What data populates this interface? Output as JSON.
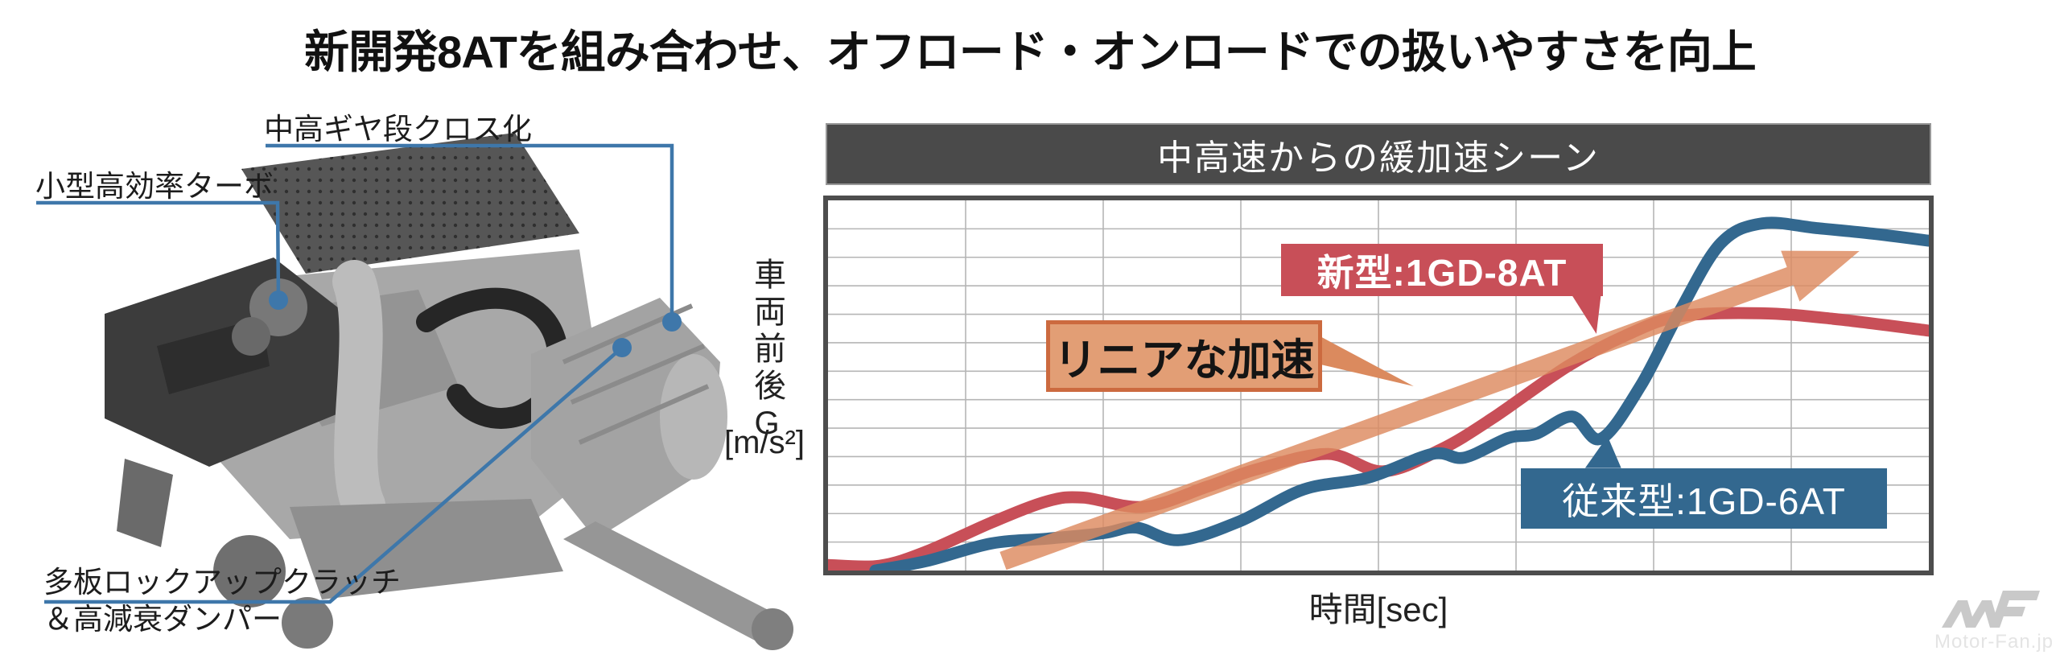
{
  "title": "新開発8ATを組み合わせ、オフロード・オンロードでの扱いやすさを向上",
  "engine": {
    "callouts": [
      {
        "label": "中高ギヤ段クロス化"
      },
      {
        "label": "小型高効率ターボ"
      },
      {
        "label": "多板ロックアップクラッチ",
        "label2": "＆高減衰ダンパー"
      }
    ]
  },
  "chart": {
    "header": "中高速からの緩加速シーン",
    "y_axis_label": "車両前後G",
    "y_axis_unit": "[m/s²]",
    "x_axis_label": "時間[sec]",
    "annotations": {
      "new_model": "新型:1GD-8AT",
      "linear": "リニアな加速",
      "old_model": "従来型:1GD-6AT"
    }
  },
  "watermark": {
    "text": "Motor-Fan.jp"
  },
  "colors": {
    "new_model_line": "#c84f58",
    "old_model_line": "#33688f",
    "trend_arrow": "#dd8a5f",
    "linear_box_fill": "#e29e75",
    "linear_box_border": "#cc6a3f",
    "header_bg": "#4a4a4a",
    "grid": "#b5b5b5",
    "frame": "#4d4d4d",
    "leader_line": "#3e77aa"
  },
  "chart_data": {
    "type": "line",
    "title": "中高速からの緩加速シーン",
    "xlabel": "時間[sec]",
    "ylabel": "車両前後G [m/s²]",
    "x_range": [
      0,
      100
    ],
    "y_range": [
      0,
      100
    ],
    "grid": {
      "cols": 8,
      "rows": 13,
      "visible": true
    },
    "legend_position": "inline-callouts",
    "axis_ticks_labeled": false,
    "series": [
      {
        "name": "新型:1GD-8AT",
        "color": "#c84f58",
        "points": [
          [
            0,
            1.5
          ],
          [
            4.7,
            1.3
          ],
          [
            9,
            5.2
          ],
          [
            14.8,
            12.9
          ],
          [
            19.9,
            18.7
          ],
          [
            23.2,
            19.7
          ],
          [
            28.7,
            17.2
          ],
          [
            34.5,
            22.7
          ],
          [
            38.9,
            27.3
          ],
          [
            45.4,
            31.5
          ],
          [
            50.4,
            26.8
          ],
          [
            55.6,
            32.6
          ],
          [
            60.4,
            41.2
          ],
          [
            67.2,
            55.2
          ],
          [
            72.6,
            63.7
          ],
          [
            77.4,
            68.7
          ],
          [
            84.7,
            69.5
          ],
          [
            91.3,
            68
          ],
          [
            100,
            64.8
          ]
        ]
      },
      {
        "name": "従来型:1GD-6AT",
        "color": "#33688f",
        "points": [
          [
            4.3,
            0
          ],
          [
            9,
            2.6
          ],
          [
            14.8,
            7.3
          ],
          [
            19.9,
            8.6
          ],
          [
            25,
            10.1
          ],
          [
            28,
            11.6
          ],
          [
            31.9,
            8.2
          ],
          [
            37.4,
            13.3
          ],
          [
            43.2,
            21.9
          ],
          [
            49.1,
            25.1
          ],
          [
            54.9,
            31.5
          ],
          [
            57.8,
            30.5
          ],
          [
            61.8,
            35.8
          ],
          [
            64.3,
            36.9
          ],
          [
            67.6,
            41.6
          ],
          [
            70.2,
            35.6
          ],
          [
            73.8,
            49.8
          ],
          [
            77.4,
            70.2
          ],
          [
            81.1,
            88.4
          ],
          [
            84.9,
            93.8
          ],
          [
            89.8,
            92.5
          ],
          [
            94.9,
            91
          ],
          [
            100,
            89.1
          ]
        ]
      }
    ],
    "trend_arrow": {
      "label": "リニアな加速",
      "from": [
        15.9,
        2.6
      ],
      "to": [
        93.7,
        86.3
      ],
      "color": "#dd8a5f",
      "opacity": 0.82
    }
  }
}
